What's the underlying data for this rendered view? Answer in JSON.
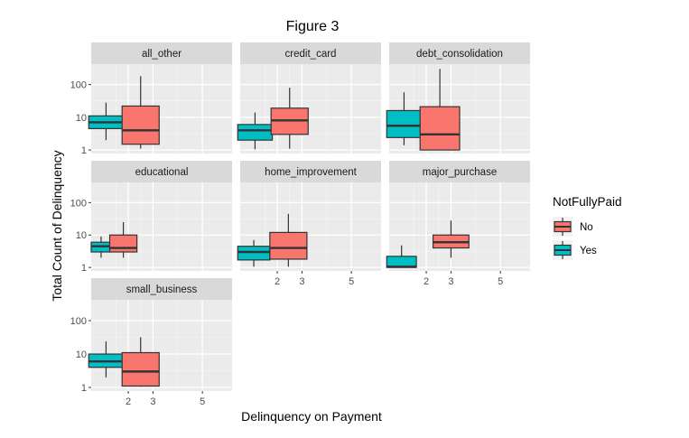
{
  "chart_data": {
    "type": "boxplot",
    "title": "Figure 3",
    "xlabel": "Delinquency on Payment",
    "ylabel": "Total Count of Delinquency",
    "y_scale": "log10",
    "y_ticks": [
      1,
      10,
      100
    ],
    "y_tick_labels": [
      "1",
      "10",
      "100"
    ],
    "x_ticks": [
      2,
      3,
      5
    ],
    "x_tick_labels": [
      "2",
      "3",
      "5"
    ],
    "xlim": [
      0.5,
      6.2
    ],
    "ylim": [
      0.78,
      420
    ],
    "grid": true,
    "legend": {
      "title": "NotFullyPaid",
      "position": "right",
      "entries": [
        {
          "key": "No",
          "label": "No",
          "color": "#F8766D"
        },
        {
          "key": "Yes",
          "label": "Yes",
          "color": "#00BFC4"
        }
      ]
    },
    "panels": [
      {
        "label": "all_other",
        "boxes": [
          {
            "group": "Yes",
            "x_center": 1.1,
            "width": 1.4,
            "min": 2,
            "q1": 4.5,
            "median": 7,
            "q3": 11,
            "max": 28
          },
          {
            "group": "No",
            "x_center": 2.5,
            "width": 1.5,
            "min": 1.1,
            "q1": 1.5,
            "median": 4,
            "q3": 22,
            "max": 180
          }
        ]
      },
      {
        "label": "credit_card",
        "boxes": [
          {
            "group": "Yes",
            "x_center": 1.1,
            "width": 1.4,
            "min": 1.05,
            "q1": 2,
            "median": 4,
            "q3": 6,
            "max": 14
          }
        ]
      },
      {
        "label": "credit_card",
        "boxes": [
          {
            "group": "No",
            "x_center": 2.5,
            "width": 1.5,
            "min": 1.1,
            "q1": 3,
            "median": 8,
            "q3": 19,
            "max": 80
          }
        ]
      },
      {
        "label": "debt_consolidation",
        "boxes": [
          {
            "group": "Yes",
            "x_center": 1.1,
            "width": 1.4,
            "min": 1.4,
            "q1": 2.4,
            "median": 5.5,
            "q3": 16,
            "max": 58
          },
          {
            "group": "No",
            "x_center": 2.55,
            "width": 1.6,
            "min": 1.0,
            "q1": 1.0,
            "median": 3,
            "q3": 21,
            "max": 300
          }
        ]
      },
      {
        "label": "educational",
        "boxes": [
          {
            "group": "Yes",
            "x_center": 0.9,
            "width": 0.8,
            "min": 2,
            "q1": 3,
            "median": 4.5,
            "q3": 6,
            "max": 9
          },
          {
            "group": "No",
            "x_center": 1.8,
            "width": 1.1,
            "min": 2,
            "q1": 3,
            "median": 4,
            "q3": 10,
            "max": 25
          }
        ]
      },
      {
        "label": "home_improvement",
        "boxes": [
          {
            "group": "Yes",
            "x_center": 1.05,
            "width": 1.3,
            "min": 1.05,
            "q1": 1.7,
            "median": 3,
            "q3": 4.5,
            "max": 7
          },
          {
            "group": "No",
            "x_center": 2.45,
            "width": 1.5,
            "min": 1.05,
            "q1": 1.8,
            "median": 4,
            "q3": 12,
            "max": 45
          }
        ]
      },
      {
        "label": "major_purchase",
        "boxes": [
          {
            "group": "Yes",
            "x_center": 1.0,
            "width": 1.2,
            "min": 1.0,
            "q1": 1.0,
            "median": 1.05,
            "q3": 2.2,
            "max": 4.8
          },
          {
            "group": "No",
            "x_center": 3.0,
            "width": 1.45,
            "min": 2,
            "q1": 4,
            "median": 6,
            "q3": 10,
            "max": 28
          }
        ]
      },
      {
        "label": "small_business",
        "boxes": [
          {
            "group": "Yes",
            "x_center": 1.1,
            "width": 1.4,
            "min": 2,
            "q1": 4,
            "median": 6,
            "q3": 10,
            "max": 24
          },
          {
            "group": "No",
            "x_center": 2.5,
            "width": 1.5,
            "min": 1.05,
            "q1": 1.1,
            "median": 3,
            "q3": 11,
            "max": 32
          }
        ]
      }
    ]
  }
}
